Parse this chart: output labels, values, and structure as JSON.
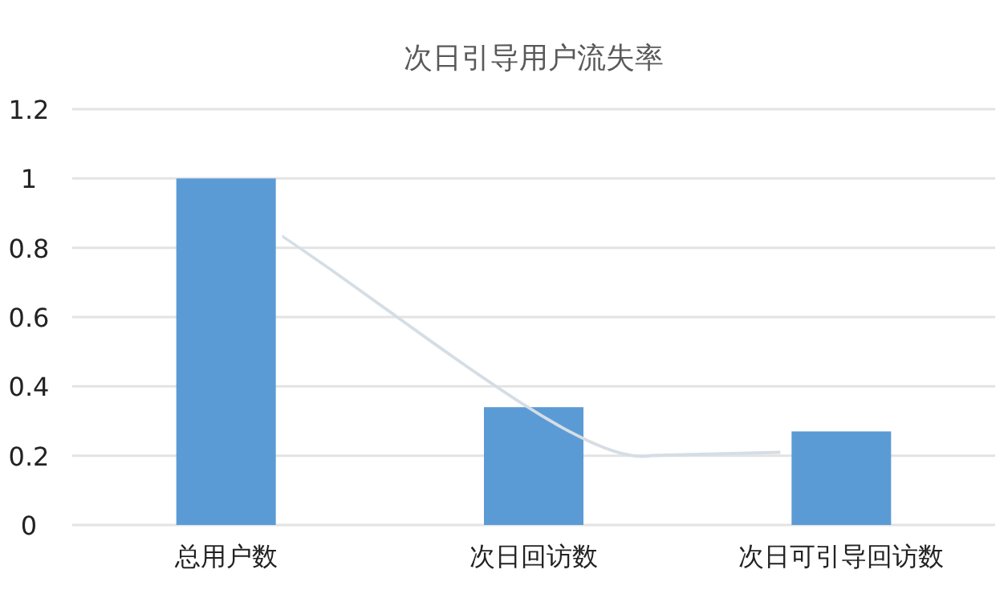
{
  "chart_data": {
    "type": "bar",
    "title": "次日引导用户流失率",
    "categories": [
      "总用户数",
      "次日回访数",
      "次日可引导回访数"
    ],
    "values": [
      1,
      0.34,
      0.27
    ],
    "color": "#5b9bd5",
    "ylim": [
      0,
      1.2
    ],
    "yticks": [
      0,
      0.2,
      0.4,
      0.6,
      0.8,
      1,
      1.2
    ],
    "grid": "y"
  }
}
